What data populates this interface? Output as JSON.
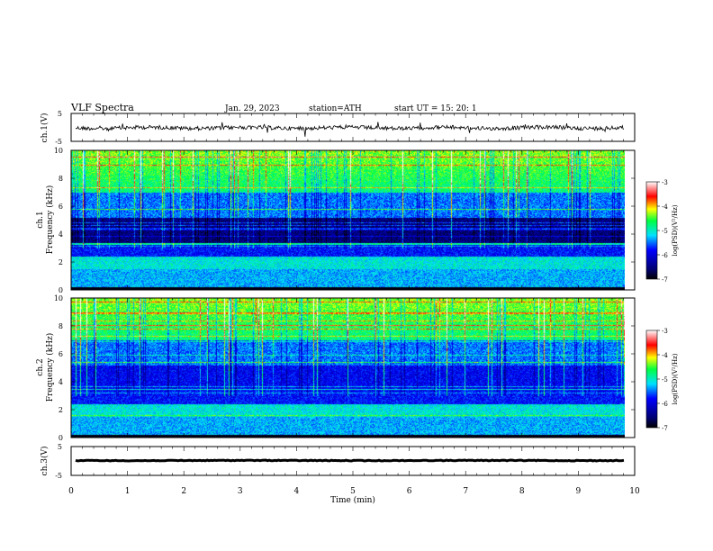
{
  "header": {
    "title": "VLF  Spectra",
    "date": "Jan. 29, 2023",
    "station": "station=ATH",
    "start": "start  UT  =    15: 20: 1"
  },
  "colorbar_label": "log(PSD)(V²/Hz)",
  "chart_data": [
    {
      "type": "line",
      "name": "ch1-waveform",
      "ylabel": "ch.1(V)",
      "ylim": [
        -5,
        5
      ],
      "yticks": [
        5,
        -5
      ],
      "xlim": [
        0,
        10
      ],
      "trace": {
        "baseline": 0,
        "noise_amplitude": 0.6,
        "spike_amplitude": 3
      }
    },
    {
      "type": "heatmap",
      "name": "ch1-spectrogram",
      "ylabel": "ch.1\nFrequency (kHz)",
      "ylim": [
        0,
        10
      ],
      "yticks": [
        "10",
        "8",
        "6",
        "4",
        "2",
        "0"
      ],
      "xlim": [
        0,
        10
      ],
      "colorbar": {
        "min": -7,
        "max": -3,
        "ticks": [
          "-3",
          "-4",
          "-5",
          "-6",
          "-7"
        ]
      }
    },
    {
      "type": "heatmap",
      "name": "ch2-spectrogram",
      "ylabel": "ch.2\nFrequency (kHz)",
      "ylim": [
        0,
        10
      ],
      "yticks": [
        "10",
        "8",
        "6",
        "4",
        "2",
        "0"
      ],
      "xlim": [
        0,
        10
      ],
      "colorbar": {
        "min": -7,
        "max": -3,
        "ticks": [
          "-3",
          "-4",
          "-5",
          "-6",
          "-7"
        ]
      }
    },
    {
      "type": "line",
      "name": "ch3-waveform",
      "ylabel": "ch.3(V)",
      "ylim": [
        -5,
        5
      ],
      "yticks": [
        5,
        -5
      ],
      "xlim": [
        0,
        10
      ],
      "xlabel": "Time  (min)",
      "xticks": [
        "0",
        "1",
        "2",
        "3",
        "4",
        "5",
        "6",
        "7",
        "8",
        "9",
        "10"
      ],
      "trace": {
        "baseline": 0,
        "noise_amplitude": 0.15,
        "spike_amplitude": 0
      }
    }
  ],
  "colors": {
    "colormap": [
      "#000000",
      "#00008a",
      "#0000ff",
      "#00ffff",
      "#00ff00",
      "#ffff00",
      "#ff0000",
      "#ffffff"
    ]
  }
}
